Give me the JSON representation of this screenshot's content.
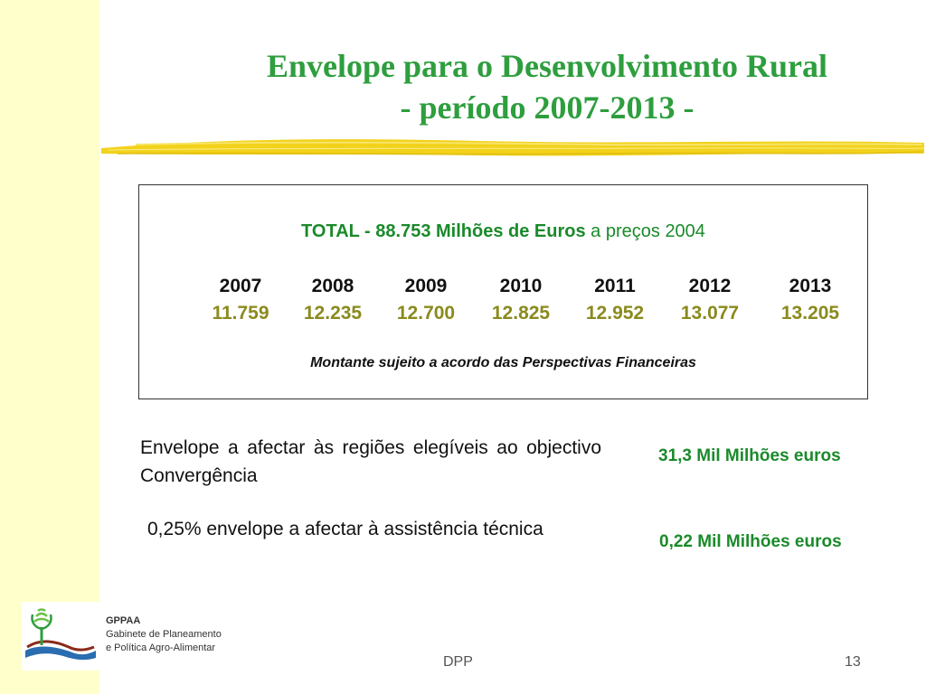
{
  "title": {
    "line1": "Envelope para o Desenvolvimento Rural",
    "line2": "- período 2007-2013 -"
  },
  "summary_box": {
    "total_prefix": "TOTAL -",
    "total_amount": "88.753 Milhões de Euros",
    "total_suffix": "a preços 2004",
    "years": [
      "2007",
      "2008",
      "2009",
      "2010",
      "2011",
      "2012",
      "2013"
    ],
    "values": [
      "11.759",
      "12.235",
      "12.700",
      "12.825",
      "12.952",
      "13.077",
      "13.205"
    ],
    "note": "Montante sujeito a acordo das Perspectivas Financeiras"
  },
  "rows": [
    {
      "text": "Envelope a afectar às regiões elegíveis ao objectivo Convergência",
      "value": "31,3 Mil Milhões euros"
    },
    {
      "text": "0,25% envelope a afectar à assistência técnica",
      "value": "0,22 Mil Milhões euros"
    }
  ],
  "logo": {
    "org": "GPPAA",
    "line1": "Gabinete de Planeamento",
    "line2": "e Política Agro-Alimentar"
  },
  "footer": {
    "center": "DPP",
    "page_number": "13"
  },
  "colors": {
    "title_green": "#2e9e3e",
    "value_olive": "#8a8a1e",
    "left_band": "#ffffcc",
    "stroke_yellow": "#f2d21a"
  }
}
